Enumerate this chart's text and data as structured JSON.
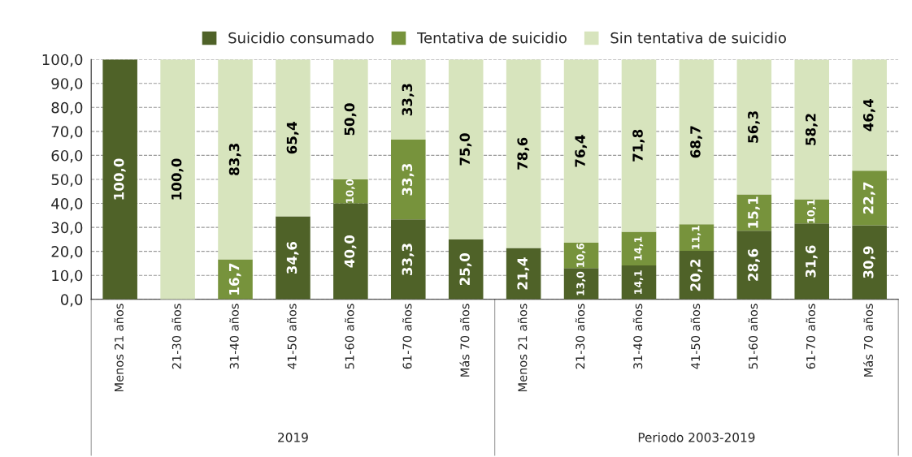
{
  "chart_data": {
    "type": "bar",
    "stacked": true,
    "categories": [
      "Menos 21 años",
      "21-30 años",
      "31-40 años",
      "41-50 años",
      "51-60 años",
      "61-70 años",
      "Más 70 años",
      "Menos 21 años",
      "21-30 años",
      "31-40 años",
      "41-50 años",
      "51-60 años",
      "61-70 años",
      "Más 70 años"
    ],
    "series": [
      {
        "name": "Suicidio consumado",
        "color": "#4f6228",
        "values": [
          100.0,
          null,
          null,
          34.6,
          40.0,
          33.3,
          25.0,
          21.4,
          13.0,
          14.1,
          20.2,
          28.6,
          31.6,
          30.9
        ],
        "value_labels": [
          "100,0",
          null,
          null,
          "34,6",
          "40,0",
          "33,3",
          "25,0",
          "21,4",
          "13,0",
          "14,1",
          "20,2",
          "28,6",
          "31,6",
          "30,9"
        ]
      },
      {
        "name": "Tentativa de suicidio",
        "color": "#77933c",
        "values": [
          null,
          null,
          16.7,
          null,
          10.0,
          33.3,
          null,
          null,
          10.6,
          14.1,
          11.1,
          15.1,
          10.1,
          22.7
        ],
        "value_labels": [
          null,
          null,
          "16,7",
          null,
          "10,0",
          "33,3",
          null,
          null,
          "10,6",
          "14,1",
          "11,1",
          "15,1",
          "10,1",
          "22,7"
        ]
      },
      {
        "name": "Sin tentativa de suicidio",
        "color": "#d7e4bd",
        "values": [
          null,
          100.0,
          83.3,
          65.4,
          50.0,
          33.3,
          75.0,
          78.6,
          76.4,
          71.8,
          68.7,
          56.3,
          58.2,
          46.4
        ],
        "value_labels": [
          null,
          "100,0",
          "83,3",
          "65,4",
          "50,0",
          "33,3",
          "75,0",
          "78,6",
          "76,4",
          "71,8",
          "68,7",
          "56,3",
          "58,2",
          "46,4"
        ]
      }
    ],
    "ylim": [
      0,
      100
    ],
    "yticks": [
      {
        "value": 0,
        "label": "0,0"
      },
      {
        "value": 10,
        "label": "10,0"
      },
      {
        "value": 20,
        "label": "20,0"
      },
      {
        "value": 30,
        "label": "30,0"
      },
      {
        "value": 40,
        "label": "40,0"
      },
      {
        "value": 50,
        "label": "50,0"
      },
      {
        "value": 60,
        "label": "60,0"
      },
      {
        "value": 70,
        "label": "70,0"
      },
      {
        "value": 80,
        "label": "80,0"
      },
      {
        "value": 90,
        "label": "90,0"
      },
      {
        "value": 100,
        "label": "100,0"
      }
    ],
    "grid": "y",
    "legend": "top",
    "annotations": [
      "2019",
      "Periodo 2003-2019"
    ]
  }
}
